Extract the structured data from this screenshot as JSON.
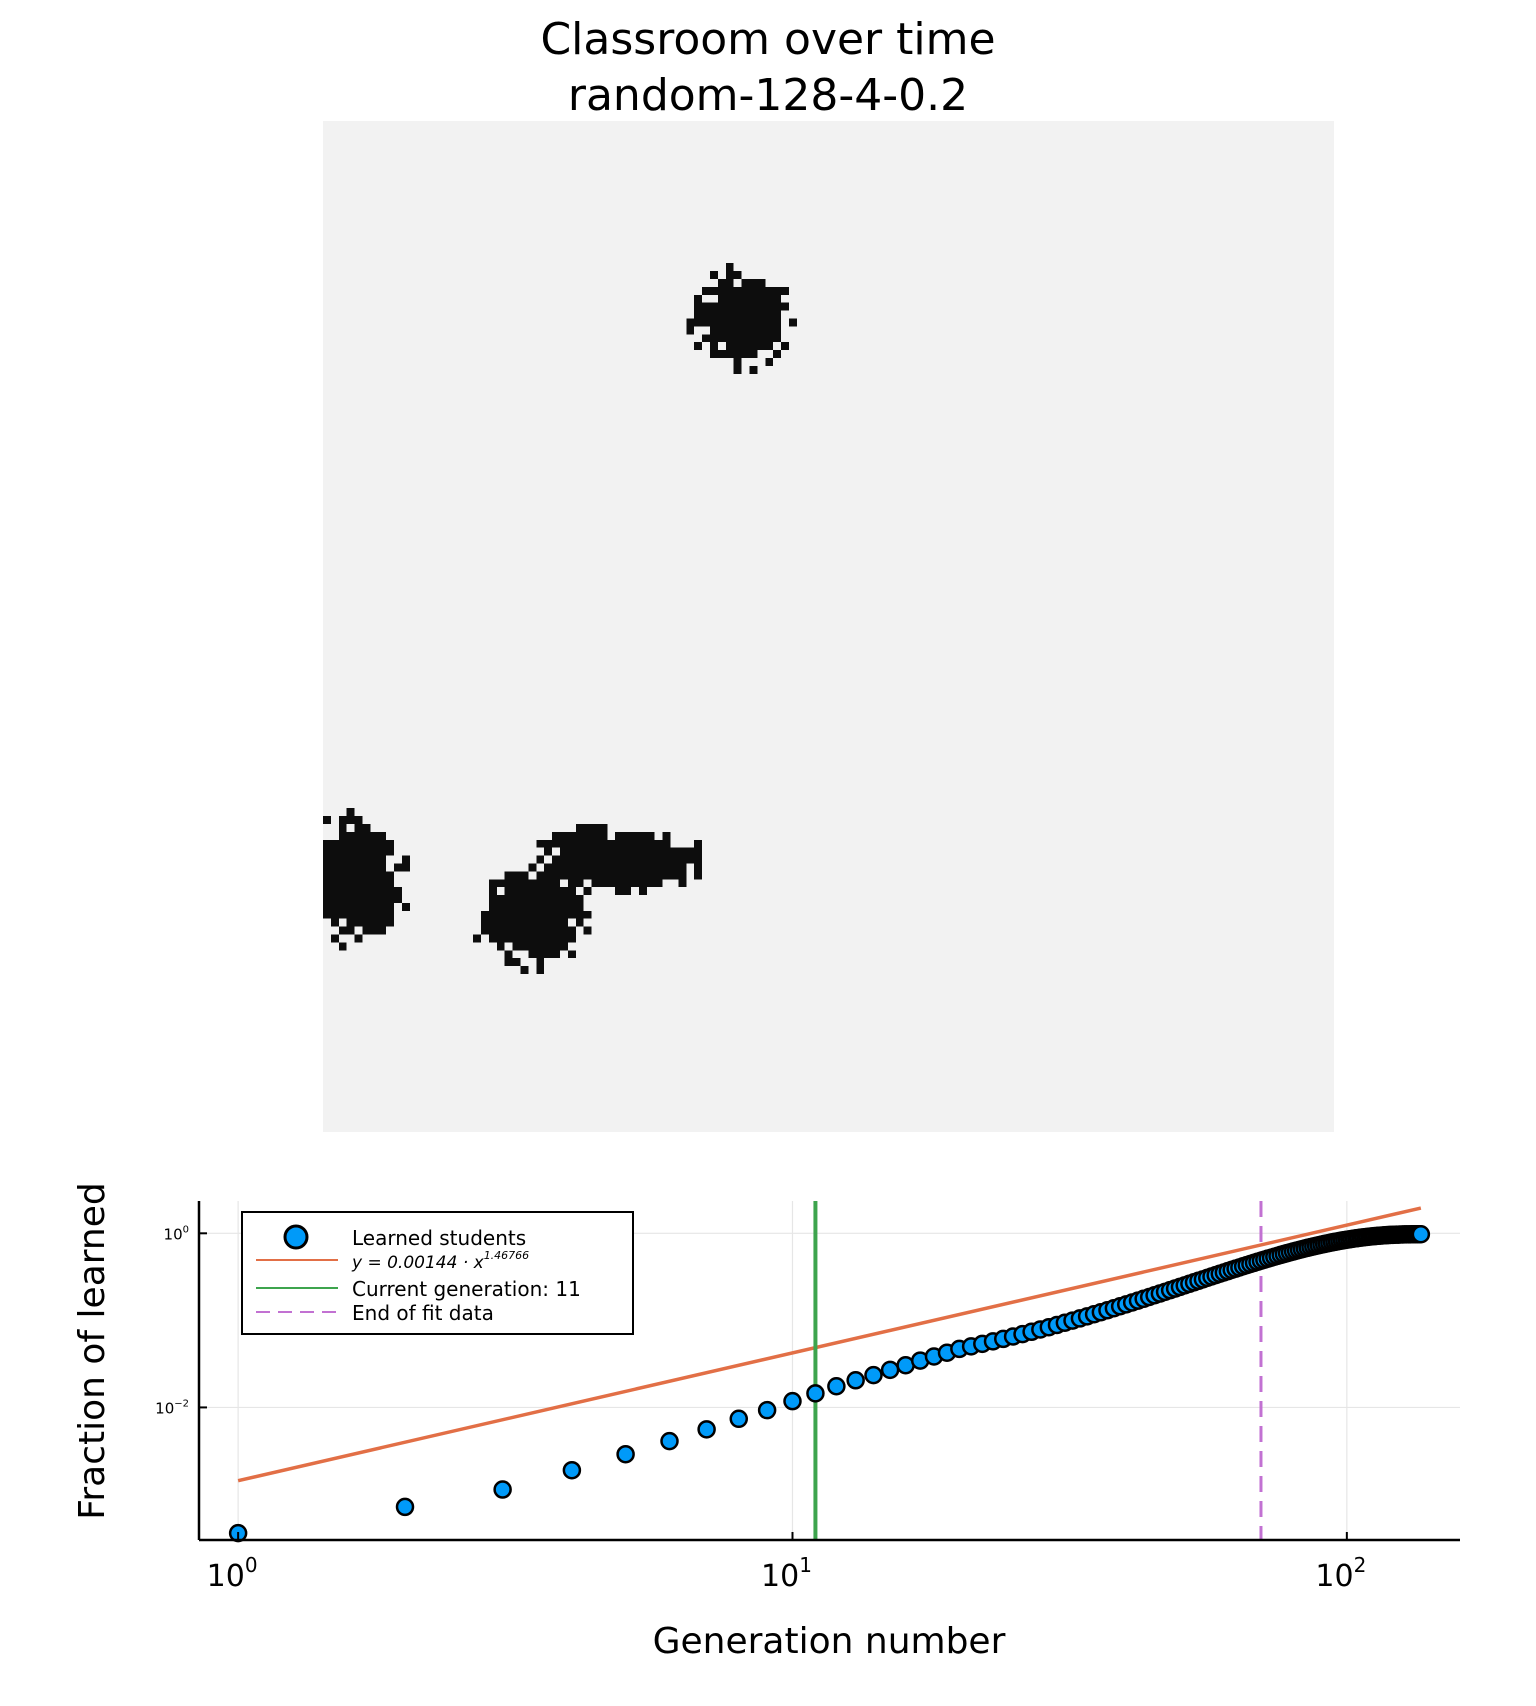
{
  "chart_data": [
    {
      "type": "heatmap",
      "title": "Classroom over time",
      "subtitle": "random-128-4-0.2",
      "grid_size": 128,
      "colors": {
        "background": "#f2f2f2",
        "learned": "#0d0d0d"
      },
      "clusters": [
        {
          "cx": 53,
          "cy": 25,
          "rx": 5.2,
          "ry": 5.2,
          "seed": 11
        },
        {
          "cx": 4.3,
          "cy": 96,
          "rx": 5.2,
          "ry": 7.2,
          "seed": 23
        },
        {
          "cx": 26.3,
          "cy": 100.5,
          "rx": 6.0,
          "ry": 5.5,
          "seed": 37
        },
        {
          "cx": 37.2,
          "cy": 93.5,
          "rx": 9.0,
          "ry": 3.6,
          "seed": 51
        }
      ]
    },
    {
      "type": "scatter",
      "xlabel": "Generation number",
      "ylabel": "Fraction of learned",
      "xscale": "log",
      "yscale": "log",
      "xlim": [
        0.85,
        160
      ],
      "ylim": [
        0.0003,
        2.35
      ],
      "xticks": [
        {
          "value": 1,
          "base": "10",
          "exp": "0"
        },
        {
          "value": 10,
          "base": "10",
          "exp": "1"
        },
        {
          "value": 100,
          "base": "10",
          "exp": "2"
        }
      ],
      "yticks": [
        {
          "value": 0.01,
          "base": "10",
          "exp": "−2"
        },
        {
          "value": 1,
          "base": "10",
          "exp": "0"
        }
      ],
      "legend_position": "top-left",
      "series": [
        {
          "name": "Learned students",
          "kind": "points",
          "color": "#009af9",
          "x_range": [
            1,
            136
          ],
          "values_head": [
            0.00036,
            0.00072,
            0.00114,
            0.0019,
            0.0029,
            0.0041,
            0.0056,
            0.0074,
            0.0093,
            0.0118,
            0.0145,
            0.0175,
            0.0205,
            0.0235,
            0.027,
            0.0305,
            0.0345,
            0.0385,
            0.0425,
            0.047
          ],
          "value_last": 0.975
        },
        {
          "name": "y = 0.00144 · x",
          "name_exponent": "1.46766",
          "kind": "line",
          "color": "#e26f46",
          "coefficient": 0.00144,
          "exponent": 1.46766,
          "x_range": [
            1,
            136
          ]
        },
        {
          "name": "Current generation: 11",
          "kind": "vline",
          "color": "#3da44d",
          "x": 11
        },
        {
          "name": "End of fit data",
          "kind": "vline-dashed",
          "color": "#c271d2",
          "x": 70
        }
      ]
    }
  ]
}
